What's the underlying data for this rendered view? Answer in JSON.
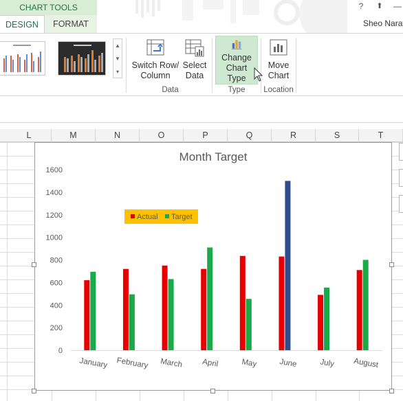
{
  "titlebar": {
    "contextual_header": "CHART TOOLS",
    "tabs": [
      "DESIGN",
      "FORMAT"
    ],
    "help": "?",
    "restore": "⬆",
    "minimize": "—",
    "user_name": "Sheo Naray"
  },
  "ribbon": {
    "switch_label_1": "Switch Row/",
    "switch_label_2": "Column",
    "select_label_1": "Select",
    "select_label_2": "Data",
    "change_label_1": "Change",
    "change_label_2": "Chart Type",
    "move_label_1": "Move",
    "move_label_2": "Chart",
    "group_data": "Data",
    "group_type": "Type",
    "group_location": "Location"
  },
  "columns": [
    "L",
    "M",
    "N",
    "O",
    "P",
    "Q",
    "R",
    "S",
    "T"
  ],
  "chart_data": {
    "type": "bar",
    "title": "Month Target",
    "categories": [
      "January",
      "February",
      "March",
      "April",
      "May",
      "June",
      "July",
      "August"
    ],
    "series": [
      {
        "name": "Actual",
        "color": "#e60000",
        "values": [
          620,
          720,
          750,
          720,
          835,
          830,
          490,
          710
        ]
      },
      {
        "name": "Target",
        "color": "#1aaa4a",
        "values": [
          695,
          495,
          630,
          910,
          455,
          1500,
          555,
          800
        ]
      }
    ],
    "highlight": {
      "category": "June",
      "series": "Target",
      "color": "#2e4d8f"
    },
    "ylim": [
      0,
      1600
    ],
    "yticks": [
      "0",
      "200",
      "400",
      "600",
      "800",
      "1000",
      "1200",
      "1400",
      "1600"
    ],
    "legend_position": "inside-top-left",
    "legend_background": "#ffc000",
    "grid": false
  }
}
